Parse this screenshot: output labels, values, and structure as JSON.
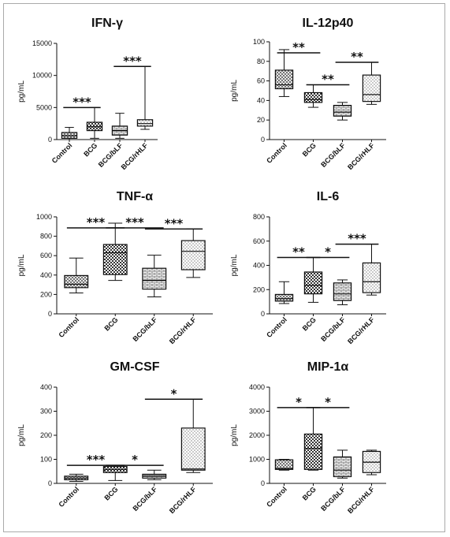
{
  "chart_data": [
    {
      "type": "box",
      "title": "IFN-γ",
      "ylabel": "pg/mL",
      "ylim": [
        0,
        15000
      ],
      "yticks": [
        0,
        5000,
        10000,
        15000
      ],
      "categories": [
        "Control",
        "BCG",
        "BCG/bLF",
        "BCG/rHLF"
      ],
      "boxes": [
        {
          "min": 0,
          "q1": 200,
          "median": 600,
          "q3": 1100,
          "max": 1900
        },
        {
          "min": 200,
          "q1": 1400,
          "median": 2000,
          "q3": 2700,
          "max": 5000
        },
        {
          "min": 200,
          "q1": 700,
          "median": 1400,
          "q3": 2100,
          "max": 4100
        },
        {
          "min": 1600,
          "q1": 2100,
          "median": 2500,
          "q3": 3100,
          "max": 11400
        }
      ],
      "significance": [
        {
          "from": 0,
          "to": 1,
          "label": "***"
        },
        {
          "from": 2,
          "to": 3,
          "label": "***"
        }
      ]
    },
    {
      "type": "box",
      "title": "IL-12p40",
      "ylabel": "pg/mL",
      "ylim": [
        0,
        100
      ],
      "yticks": [
        0,
        20,
        40,
        60,
        80,
        100
      ],
      "categories": [
        "Control",
        "BCG",
        "BCG/bLF",
        "BCG/rHLF"
      ],
      "boxes": [
        {
          "min": 44,
          "q1": 52,
          "median": 56,
          "q3": 71,
          "max": 92
        },
        {
          "min": 33,
          "q1": 38,
          "median": 41,
          "q3": 48,
          "max": 56
        },
        {
          "min": 20,
          "q1": 24,
          "median": 28,
          "q3": 35,
          "max": 38
        },
        {
          "min": 36,
          "q1": 39,
          "median": 46,
          "q3": 66,
          "max": 79
        }
      ],
      "significance": [
        {
          "from": 0,
          "to": 1,
          "label": "**"
        },
        {
          "from": 1,
          "to": 2,
          "label": "**"
        },
        {
          "from": 2,
          "to": 3,
          "label": "**"
        }
      ]
    },
    {
      "type": "box",
      "title": "TNF-α",
      "ylabel": "pg/mL",
      "ylim": [
        0,
        1000
      ],
      "yticks": [
        0,
        200,
        400,
        600,
        800,
        1000
      ],
      "categories": [
        "Control",
        "BCG",
        "BCG/bLF",
        "BCG/rHLF"
      ],
      "boxes": [
        {
          "min": 215,
          "q1": 270,
          "median": 305,
          "q3": 395,
          "max": 575
        },
        {
          "min": 345,
          "q1": 405,
          "median": 630,
          "q3": 715,
          "max": 935
        },
        {
          "min": 175,
          "q1": 255,
          "median": 345,
          "q3": 470,
          "max": 605
        },
        {
          "min": 375,
          "q1": 455,
          "median": 645,
          "q3": 755,
          "max": 875
        }
      ],
      "significance": [
        {
          "from": 0,
          "to": 1,
          "label": "***"
        },
        {
          "from": 1,
          "to": 2,
          "label": "***"
        },
        {
          "from": 2,
          "to": 3,
          "label": "***"
        }
      ]
    },
    {
      "type": "box",
      "title": "IL-6",
      "ylabel": "pg/mL",
      "ylim": [
        0,
        800
      ],
      "yticks": [
        0,
        200,
        400,
        600,
        800
      ],
      "categories": [
        "Control",
        "BCG",
        "BCG/bLF",
        "BCG/rHLF"
      ],
      "boxes": [
        {
          "min": 85,
          "q1": 105,
          "median": 125,
          "q3": 160,
          "max": 265
        },
        {
          "min": 95,
          "q1": 165,
          "median": 235,
          "q3": 345,
          "max": 465
        },
        {
          "min": 75,
          "q1": 110,
          "median": 165,
          "q3": 255,
          "max": 280
        },
        {
          "min": 155,
          "q1": 175,
          "median": 265,
          "q3": 420,
          "max": 575
        }
      ],
      "significance": [
        {
          "from": 0,
          "to": 1,
          "label": "**"
        },
        {
          "from": 1,
          "to": 2,
          "label": "*"
        },
        {
          "from": 2,
          "to": 3,
          "label": "***"
        }
      ]
    },
    {
      "type": "box",
      "title": "GM-CSF",
      "ylabel": "pg/mL",
      "ylim": [
        0,
        400
      ],
      "yticks": [
        0,
        100,
        200,
        300,
        400
      ],
      "categories": [
        "Control",
        "BCG",
        "BCG/bLF",
        "BCG/rHLF"
      ],
      "boxes": [
        {
          "min": 8,
          "q1": 15,
          "median": 22,
          "q3": 30,
          "max": 38
        },
        {
          "min": 12,
          "q1": 45,
          "median": 58,
          "q3": 70,
          "max": 75
        },
        {
          "min": 15,
          "q1": 22,
          "median": 30,
          "q3": 38,
          "max": 55
        },
        {
          "min": 45,
          "q1": 55,
          "median": 60,
          "q3": 230,
          "max": 350
        }
      ],
      "significance": [
        {
          "from": 0,
          "to": 1,
          "label": "***"
        },
        {
          "from": 1,
          "to": 2,
          "label": "*"
        },
        {
          "from": 2,
          "to": 3,
          "label": "*"
        }
      ]
    },
    {
      "type": "box",
      "title": "MIP-1α",
      "ylabel": "pg/mL",
      "ylim": [
        0,
        4000
      ],
      "yticks": [
        0,
        1000,
        2000,
        3000,
        4000
      ],
      "categories": [
        "Control",
        "BCG",
        "BCG/bLF",
        "BCG/rHLF"
      ],
      "boxes": [
        {
          "min": 550,
          "q1": 580,
          "median": 620,
          "q3": 980,
          "max": 1000
        },
        {
          "min": 550,
          "q1": 580,
          "median": 1450,
          "q3": 2050,
          "max": 3150
        },
        {
          "min": 220,
          "q1": 280,
          "median": 550,
          "q3": 1100,
          "max": 1380
        },
        {
          "min": 360,
          "q1": 450,
          "median": 880,
          "q3": 1330,
          "max": 1380
        }
      ],
      "significance": [
        {
          "from": 0,
          "to": 1,
          "label": "*"
        },
        {
          "from": 1,
          "to": 2,
          "label": "*"
        }
      ]
    }
  ]
}
